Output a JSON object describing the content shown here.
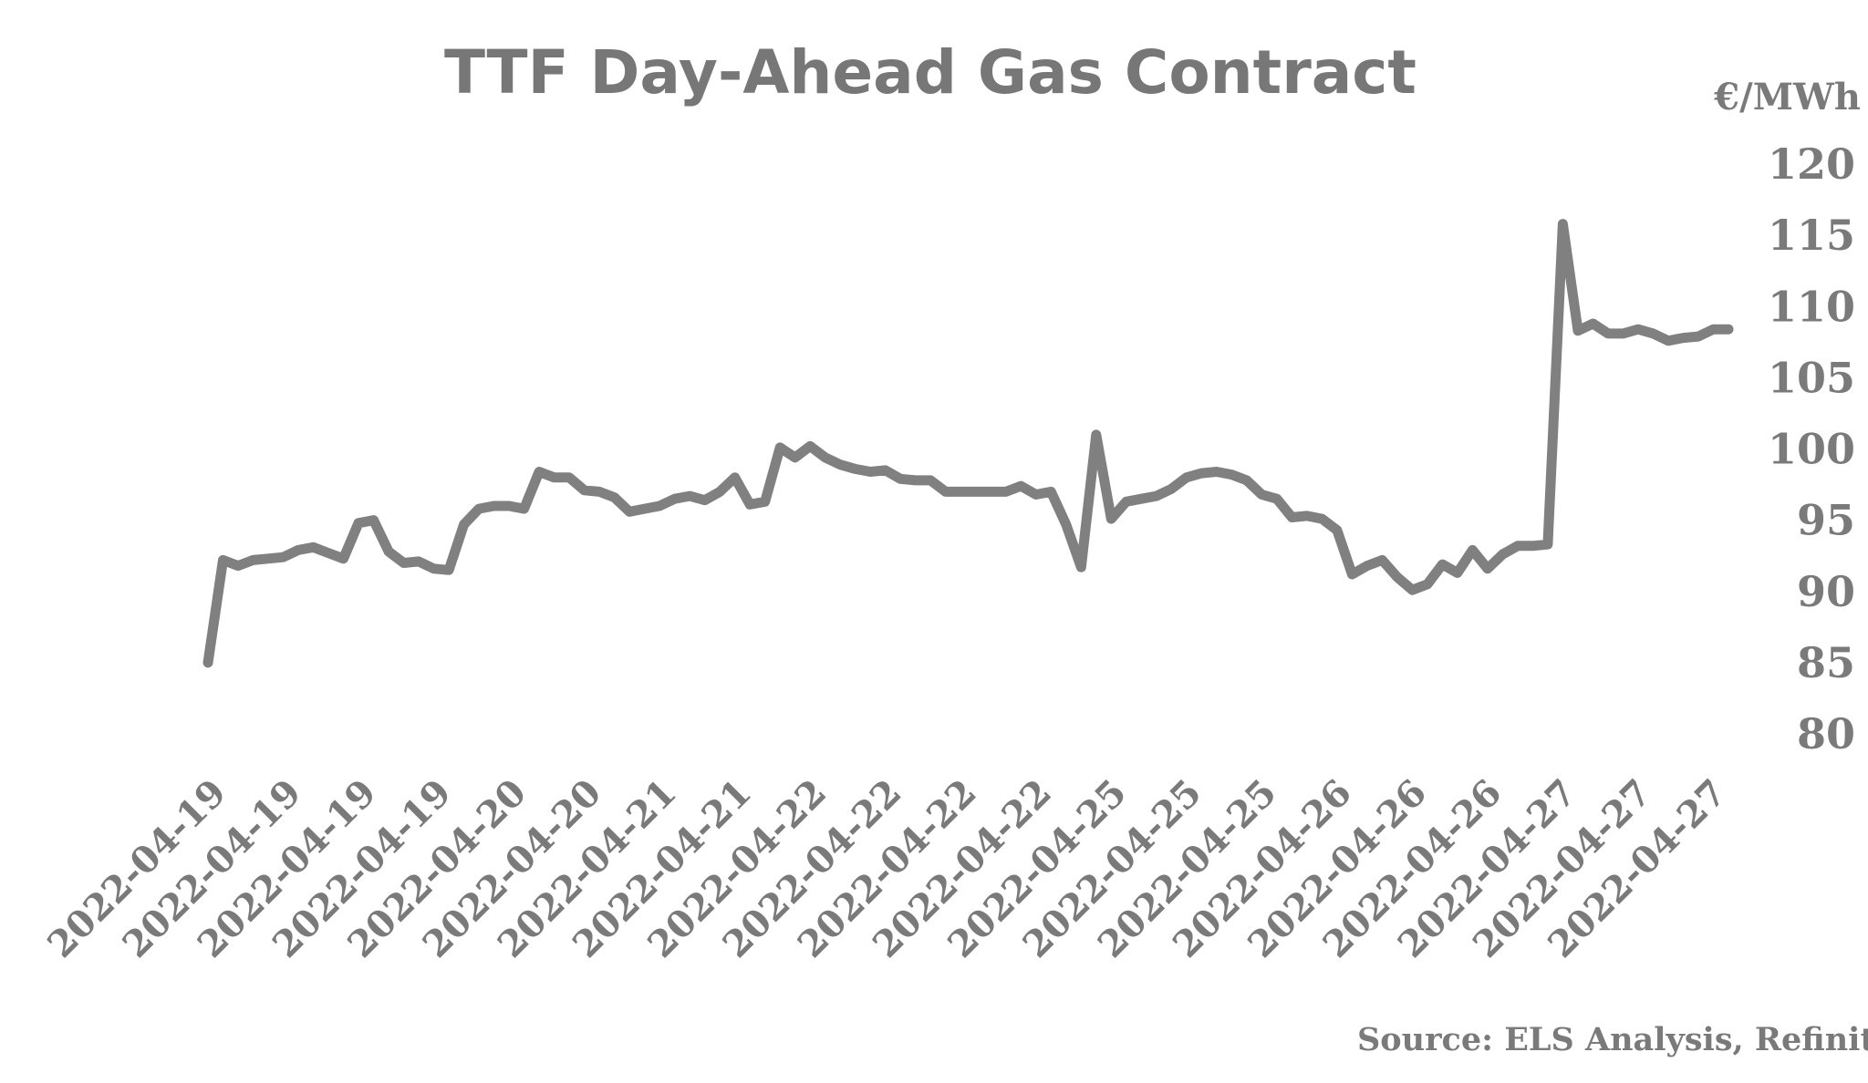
{
  "chart_data": {
    "type": "line",
    "title": "TTF Day-Ahead Gas Contract",
    "unit_label": "€/MWh",
    "source": "Source: ELS Analysis, Refinitiv",
    "xlabel": "",
    "ylabel": "€/MWh",
    "ylim": [
      80,
      120
    ],
    "yticks": [
      120,
      115,
      110,
      105,
      100,
      95,
      90,
      85,
      80
    ],
    "y_axis_position": "right",
    "grid": false,
    "legend": "none",
    "line_color": "#808080",
    "x_tick_labels": [
      "2022-04-19",
      "2022-04-19",
      "2022-04-19",
      "2022-04-19",
      "2022-04-20",
      "2022-04-20",
      "2022-04-21",
      "2022-04-21",
      "2022-04-22",
      "2022-04-22",
      "2022-04-22",
      "2022-04-22",
      "2022-04-25",
      "2022-04-25",
      "2022-04-25",
      "2022-04-26",
      "2022-04-26",
      "2022-04-26",
      "2022-04-27",
      "2022-04-27",
      "2022-04-27"
    ],
    "series": [
      {
        "values": [
          85.0,
          92.2,
          91.8,
          92.2,
          92.3,
          92.4,
          92.9,
          93.1,
          92.7,
          92.3,
          94.8,
          95.0,
          92.8,
          92.0,
          92.1,
          91.6,
          91.5,
          94.7,
          95.8,
          96.0,
          96.0,
          95.8,
          98.4,
          98.0,
          98.0,
          97.1,
          97.0,
          96.6,
          95.6,
          95.8,
          96.0,
          96.5,
          96.7,
          96.4,
          97.0,
          98.0,
          96.1,
          96.3,
          100.1,
          99.4,
          100.2,
          99.4,
          98.9,
          98.6,
          98.4,
          98.5,
          97.9,
          97.8,
          97.8,
          97.0,
          97.0,
          97.0,
          97.0,
          97.0,
          97.4,
          96.8,
          97.0,
          94.7,
          91.7,
          101.0,
          95.1,
          96.3,
          96.5,
          96.7,
          97.2,
          98.0,
          98.3,
          98.4,
          98.2,
          97.8,
          96.8,
          96.5,
          95.2,
          95.3,
          95.1,
          94.3,
          91.2,
          91.8,
          92.2,
          91.0,
          90.1,
          90.5,
          91.9,
          91.3,
          92.9,
          91.6,
          92.6,
          93.2,
          93.2,
          93.3,
          115.8,
          108.3,
          108.8,
          108.1,
          108.1,
          108.4,
          108.1,
          107.6,
          107.8,
          107.9,
          108.4,
          108.4
        ]
      }
    ]
  }
}
